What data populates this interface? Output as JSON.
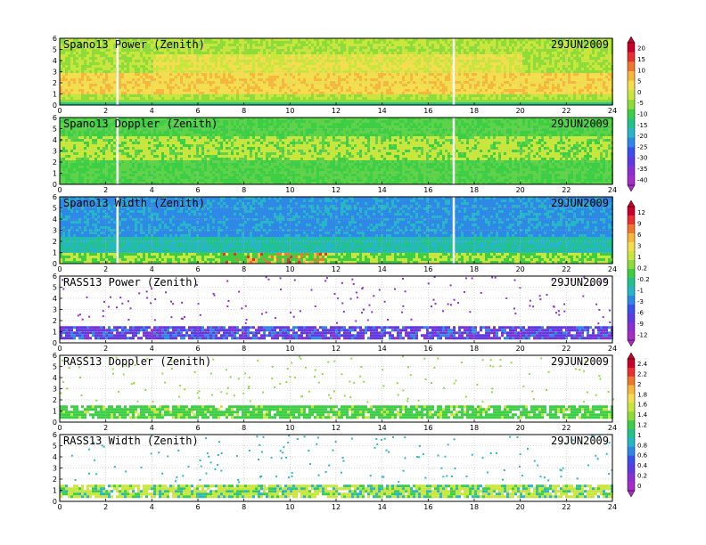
{
  "figure": {
    "date_label": "29JUN2009"
  },
  "chart_data": [
    {
      "type": "heatmap",
      "title": "Spano13 Power (Zenith)",
      "date": "29JUN2009",
      "xlim": [
        0,
        24
      ],
      "ylim": [
        0,
        6
      ],
      "x_ticks": [
        "0",
        "2",
        "4",
        "6",
        "8",
        "10",
        "12",
        "14",
        "16",
        "18",
        "20",
        "22",
        "24"
      ],
      "y_ticks": [
        "0",
        "1",
        "2",
        "3",
        "4",
        "5",
        "6"
      ],
      "colorbar": "A",
      "data_gaps_hours": [
        2.5,
        17.1
      ],
      "grid": true
    },
    {
      "type": "heatmap",
      "title": "Spano13 Doppler (Zenith)",
      "date": "29JUN2009",
      "xlim": [
        0,
        24
      ],
      "ylim": [
        0,
        6
      ],
      "x_ticks": [
        "0",
        "2",
        "4",
        "6",
        "8",
        "10",
        "12",
        "14",
        "16",
        "18",
        "20",
        "22",
        "24"
      ],
      "y_ticks": [
        "0",
        "1",
        "2",
        "3",
        "4",
        "5",
        "6"
      ],
      "colorbar": "A",
      "data_gaps_hours": [
        2.5,
        17.1
      ],
      "grid": true
    },
    {
      "type": "heatmap",
      "title": "Spano13 Width (Zenith)",
      "date": "29JUN2009",
      "xlim": [
        0,
        24
      ],
      "ylim": [
        0,
        6
      ],
      "x_ticks": [
        "0",
        "2",
        "4",
        "6",
        "8",
        "10",
        "12",
        "14",
        "16",
        "18",
        "20",
        "22",
        "24"
      ],
      "y_ticks": [
        "0",
        "1",
        "2",
        "3",
        "4",
        "5",
        "6"
      ],
      "colorbar": "B",
      "data_gaps_hours": [
        2.5,
        17.1
      ],
      "grid": true
    },
    {
      "type": "heatmap",
      "title": "RASS13 Power (Zenith)",
      "date": "29JUN2009",
      "xlim": [
        0,
        24
      ],
      "ylim": [
        0,
        6
      ],
      "x_ticks": [
        "0",
        "2",
        "4",
        "6",
        "8",
        "10",
        "12",
        "14",
        "16",
        "18",
        "20",
        "22",
        "24"
      ],
      "y_ticks": [
        "0",
        "1",
        "2",
        "3",
        "4",
        "5",
        "6"
      ],
      "colorbar": "B",
      "data_band_km": [
        0.5,
        1.5
      ],
      "grid": true
    },
    {
      "type": "heatmap",
      "title": "RASS13 Doppler (Zenith)",
      "date": "29JUN2009",
      "xlim": [
        0,
        24
      ],
      "ylim": [
        0,
        6
      ],
      "x_ticks": [
        "0",
        "2",
        "4",
        "6",
        "8",
        "10",
        "12",
        "14",
        "16",
        "18",
        "20",
        "22",
        "24"
      ],
      "y_ticks": [
        "0",
        "1",
        "2",
        "3",
        "4",
        "5",
        "6"
      ],
      "colorbar": "C",
      "data_band_km": [
        0.5,
        1.5
      ],
      "grid": true
    },
    {
      "type": "heatmap",
      "title": "RASS13 Width (Zenith)",
      "date": "29JUN2009",
      "xlim": [
        0,
        24
      ],
      "ylim": [
        0,
        6
      ],
      "x_ticks": [
        "0",
        "2",
        "4",
        "6",
        "8",
        "10",
        "12",
        "14",
        "16",
        "18",
        "20",
        "22",
        "24"
      ],
      "y_ticks": [
        "0",
        "1",
        "2",
        "3",
        "4",
        "5",
        "6"
      ],
      "colorbar": "C",
      "data_band_km": [
        0.5,
        1.5
      ],
      "grid": true
    }
  ],
  "colorbars": {
    "A": {
      "labels": [
        "20",
        "15",
        "10",
        "5",
        "0",
        "-5",
        "-10",
        "-15",
        "-20",
        "-25",
        "-30",
        "-35",
        "-40"
      ],
      "colors": [
        "#c8002a",
        "#e8302e",
        "#f0782e",
        "#f5b83c",
        "#f2de4e",
        "#c9e63c",
        "#8edc3a",
        "#3ccf46",
        "#21c28c",
        "#27b6c8",
        "#2e88e6",
        "#3a50ea",
        "#5f3ae0",
        "#8a2fd2",
        "#a52ec6"
      ]
    },
    "B": {
      "labels": [
        "12",
        "9",
        "6",
        "3",
        "1",
        "0.2",
        "-0.2",
        "-1",
        "-3",
        "-6",
        "-9",
        "-12"
      ],
      "colors": [
        "#c8002a",
        "#e8302e",
        "#f0782e",
        "#f5b83c",
        "#f2de4e",
        "#c9e63c",
        "#8edc3a",
        "#3ccf46",
        "#21c28c",
        "#27b6c8",
        "#2e88e6",
        "#3a50ea",
        "#5f3ae0",
        "#8a2fd2",
        "#a52ec6"
      ]
    },
    "C": {
      "labels": [
        "2.4",
        "2.2",
        "2",
        "1.8",
        "1.6",
        "1.4",
        "1.2",
        "1",
        "0.8",
        "0.6",
        "0.4",
        "0.2",
        "0"
      ],
      "colors": [
        "#c8002a",
        "#e8302e",
        "#f0782e",
        "#f5b83c",
        "#f2de4e",
        "#c9e63c",
        "#8edc3a",
        "#3ccf46",
        "#21c28c",
        "#27b6c8",
        "#2e88e6",
        "#3a50ea",
        "#5f3ae0",
        "#8a2fd2",
        "#a52ec6"
      ]
    }
  }
}
